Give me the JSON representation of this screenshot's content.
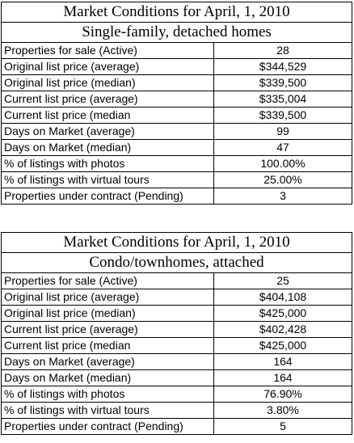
{
  "tables": [
    {
      "title": "Market Conditions for April, 1, 2010",
      "subtitle": "Single-family, detached homes",
      "rows": [
        {
          "label": "Properties for sale (Active)",
          "value": "28"
        },
        {
          "label": "Original list price (average)",
          "value": "$344,529"
        },
        {
          "label": "Original list price (median)",
          "value": "$339,500"
        },
        {
          "label": "Current list price (average)",
          "value": "$335,004"
        },
        {
          "label": "Current list price (median",
          "value": "$339,500"
        },
        {
          "label": "Days on Market (average)",
          "value": "99"
        },
        {
          "label": "Days on Market (median)",
          "value": "47"
        },
        {
          "label": "% of listings with photos",
          "value": "100.00%"
        },
        {
          "label": "% of listings with virtual tours",
          "value": "25.00%"
        },
        {
          "label": "Properties under contract (Pending)",
          "value": "3"
        }
      ]
    },
    {
      "title": "Market Conditions for April, 1, 2010",
      "subtitle": "Condo/townhomes, attached",
      "rows": [
        {
          "label": "Properties for sale (Active)",
          "value": "25"
        },
        {
          "label": "Original list price (average)",
          "value": "$404,108"
        },
        {
          "label": "Original list price (median)",
          "value": "$425,000"
        },
        {
          "label": "Current list price (average)",
          "value": "$402,428"
        },
        {
          "label": "Current list price (median",
          "value": "$425,000"
        },
        {
          "label": "Days on Market (average)",
          "value": "164"
        },
        {
          "label": "Days on Market (median)",
          "value": "164"
        },
        {
          "label": "% of listings with photos",
          "value": "76.90%"
        },
        {
          "label": "% of listings with virtual tours",
          "value": "3.80%"
        },
        {
          "label": "Properties under contract (Pending)",
          "value": "5"
        }
      ]
    }
  ]
}
